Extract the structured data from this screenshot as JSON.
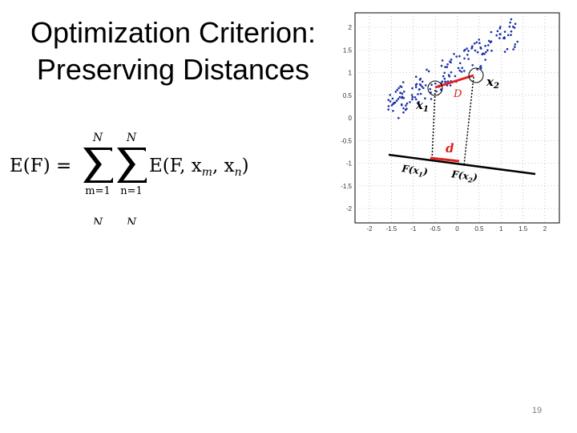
{
  "slide": {
    "title_line1": "Optimization Criterion:",
    "title_line2": "Preserving Distances",
    "page_number": "19"
  },
  "formula": {
    "lhs": "E(F) = ",
    "sum_upper": "N",
    "sum1_lower": "m=1",
    "sum2_lower": "n=1",
    "rhs": "E(F, x",
    "sub_m": "m",
    "sub_n": "n",
    "rhs_close": ")"
  },
  "figure": {
    "x_ticks": [
      "-2",
      "-1.5",
      "-1",
      "-0.5",
      "0",
      "0.5",
      "1",
      "1.5",
      "2"
    ],
    "y_ticks": [
      "2",
      "1.5",
      "1",
      "0.5",
      "0",
      "-0.5",
      "-1",
      "-1.5",
      "-2"
    ],
    "label_x1": "x",
    "label_x1_sub": "1",
    "label_x2": "x",
    "label_x2_sub": "2",
    "label_D": "D",
    "label_d": "d",
    "label_Fx1": "F(x",
    "label_Fx1_sub": "1",
    "label_Fx2": "F(x",
    "label_Fx2_sub": "2",
    "close_paren": ")",
    "colors": {
      "points": "#1a2fa8",
      "highlight": "#e02020",
      "axis": "#000000"
    }
  }
}
